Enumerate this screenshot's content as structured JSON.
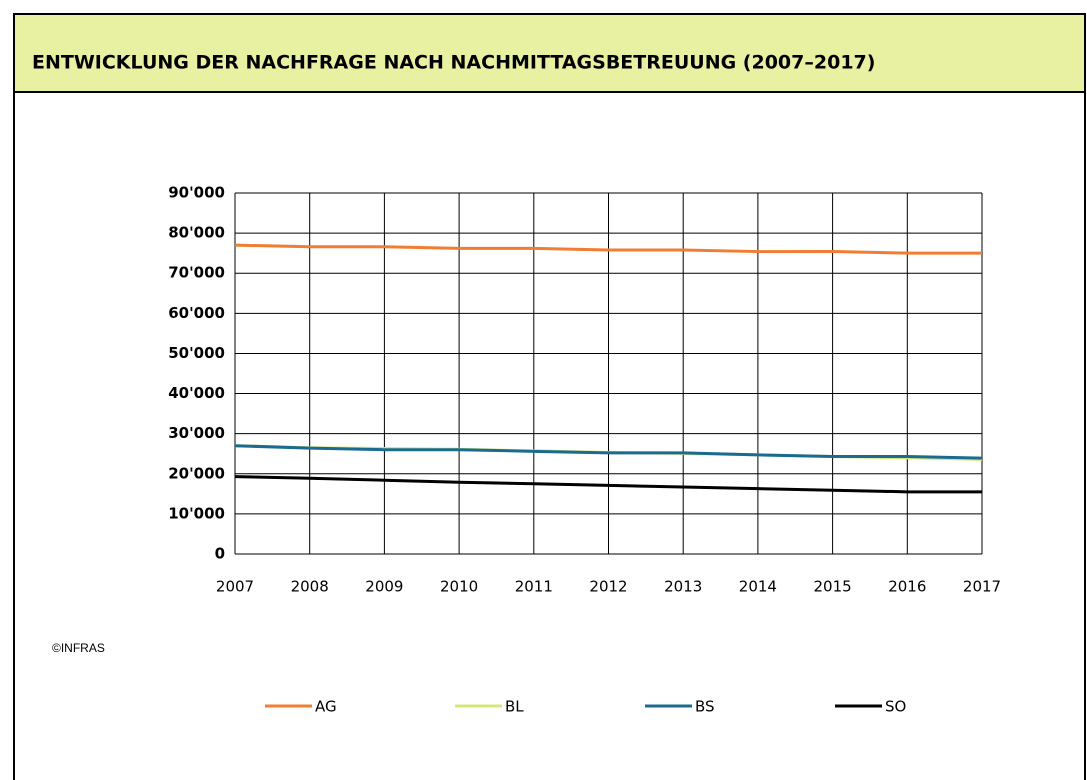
{
  "chart_data": {
    "type": "line",
    "title": "ENTWICKLUNG DER NACHFRAGE NACH NACHMITTAGSBETREUUNG (2007–2017)",
    "source": "©INFRAS",
    "x": [
      2007,
      2008,
      2009,
      2010,
      2011,
      2012,
      2013,
      2014,
      2015,
      2016,
      2017
    ],
    "xlim": [
      2007,
      2017
    ],
    "xticks": [
      2007,
      2008,
      2009,
      2010,
      2011,
      2012,
      2013,
      2014,
      2015,
      2016,
      2017
    ],
    "ylim": [
      0,
      90000
    ],
    "yticks": [
      0,
      {
        "value": 10000,
        "label": "10'000"
      },
      {
        "value": 20000,
        "label": "20'000"
      },
      {
        "value": 30000,
        "label": "30'000"
      },
      {
        "value": 40000,
        "label": "40'000"
      },
      {
        "value": 50000,
        "label": "50'000"
      },
      {
        "value": 60000,
        "label": "60'000"
      },
      {
        "value": 70000,
        "label": "70'000"
      },
      {
        "value": 80000,
        "label": "80'000"
      },
      {
        "value": 90000,
        "label": "90'000"
      }
    ],
    "grid": true,
    "legend": "bottom",
    "series": [
      {
        "name": "AG",
        "color": "#f07d32",
        "values": [
          77000,
          76600,
          76600,
          76200,
          76200,
          75800,
          75800,
          75400,
          75400,
          75000,
          75000
        ]
      },
      {
        "name": "BL",
        "color": "#d4e87a",
        "values": [
          27000,
          26500,
          26300,
          26100,
          25700,
          25300,
          25100,
          24700,
          24300,
          24000,
          23600
        ]
      },
      {
        "name": "BS",
        "color": "#1a6b8f",
        "values": [
          27000,
          26400,
          26000,
          26000,
          25600,
          25200,
          25200,
          24700,
          24300,
          24300,
          23900
        ]
      },
      {
        "name": "SO",
        "color": "#000000",
        "values": [
          19300,
          18900,
          18400,
          17900,
          17500,
          17100,
          16700,
          16300,
          15900,
          15500,
          15500
        ]
      }
    ]
  }
}
